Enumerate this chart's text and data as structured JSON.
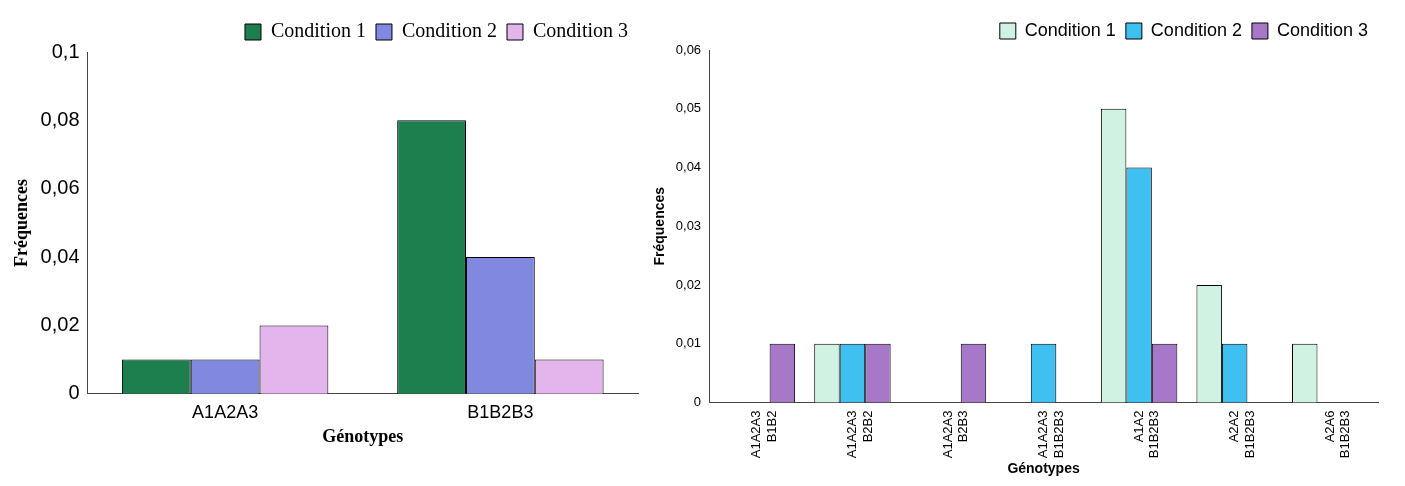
{
  "chart_data": [
    {
      "type": "bar",
      "xlabel": "Génotypes",
      "ylabel": "Fréquences",
      "categories": [
        "A1A2A3",
        "B1B2B3"
      ],
      "series": [
        {
          "name": "Condition 1",
          "color": "#1e7f4e",
          "values": [
            0.01,
            0.08
          ]
        },
        {
          "name": "Condition 2",
          "color": "#8088e0",
          "values": [
            0.01,
            0.04
          ]
        },
        {
          "name": "Condition 3",
          "color": "#e4b4ec",
          "values": [
            0.02,
            0.01
          ]
        }
      ],
      "ylim": [
        0,
        0.1
      ],
      "yticks": [
        0,
        {
          "value": 0.02,
          "label": "0,02"
        },
        {
          "value": 0.04,
          "label": "0,04"
        },
        {
          "value": 0.06,
          "label": "0,06"
        },
        {
          "value": 0.08,
          "label": "0,08"
        },
        {
          "value": 0.1,
          "label": "0,1"
        }
      ],
      "grid": false,
      "legend": "top right"
    },
    {
      "type": "bar",
      "xlabel": "Génotypes",
      "ylabel": "Fréquences",
      "categories": [
        "A1A2A3 B1B2",
        "A1A2A3 B2B2",
        "A1A2A3 B2B3",
        "A1A2A3 B1B2B3",
        "A1A2 B1B2B3",
        "A2A2 B1B2B3",
        "A2A6 B1B2B3"
      ],
      "series": [
        {
          "name": "Condition 1",
          "color": "#cff2e2",
          "values": [
            0,
            0.01,
            0,
            0,
            0.05,
            0.02,
            0.01
          ]
        },
        {
          "name": "Condition 2",
          "color": "#3ec0f0",
          "values": [
            0,
            0.01,
            0,
            0.01,
            0.04,
            0.01,
            0
          ]
        },
        {
          "name": "Condition 3",
          "color": "#a878c8",
          "values": [
            0.01,
            0.01,
            0.01,
            0,
            0.01,
            0,
            0
          ]
        }
      ],
      "ylim": [
        0,
        0.06
      ],
      "yticks": [
        0,
        {
          "value": 0.01,
          "label": "0,01"
        },
        {
          "value": 0.02,
          "label": "0,02"
        },
        {
          "value": 0.03,
          "label": "0,03"
        },
        {
          "value": 0.04,
          "label": "0,04"
        },
        {
          "value": 0.05,
          "label": "0,05"
        },
        {
          "value": 0.06,
          "label": "0,06"
        }
      ],
      "grid": false,
      "legend": "top right"
    }
  ]
}
